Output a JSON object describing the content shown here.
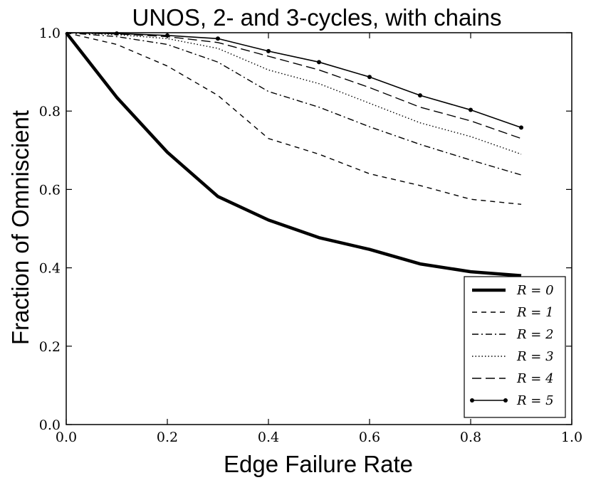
{
  "chart_data": {
    "type": "line",
    "title": "UNOS, 2- and 3-cycles, with chains",
    "xlabel": "Edge Failure Rate",
    "ylabel": "Fraction of Omniscient",
    "xlim": [
      0.0,
      1.0
    ],
    "ylim": [
      0.0,
      1.0
    ],
    "xticks": [
      "0.0",
      "0.2",
      "0.4",
      "0.6",
      "0.8",
      "1.0"
    ],
    "yticks": [
      "0.0",
      "0.2",
      "0.4",
      "0.6",
      "0.8",
      "1.0"
    ],
    "grid": false,
    "legend_position": "lower-right",
    "x": [
      0.0,
      0.1,
      0.2,
      0.3,
      0.4,
      0.5,
      0.6,
      0.7,
      0.8,
      0.9
    ],
    "series": [
      {
        "name": "R = 0",
        "style": "thick-solid",
        "values": [
          1.0,
          0.835,
          0.695,
          0.582,
          0.522,
          0.477,
          0.447,
          0.41,
          0.39,
          0.38
        ]
      },
      {
        "name": "R = 1",
        "style": "dashed",
        "values": [
          1.0,
          0.97,
          0.915,
          0.84,
          0.73,
          0.69,
          0.64,
          0.61,
          0.575,
          0.562
        ]
      },
      {
        "name": "R = 2",
        "style": "dash-dot",
        "values": [
          1.0,
          0.99,
          0.97,
          0.925,
          0.85,
          0.81,
          0.76,
          0.715,
          0.675,
          0.637
        ]
      },
      {
        "name": "R = 3",
        "style": "dotted",
        "values": [
          1.0,
          0.995,
          0.985,
          0.96,
          0.905,
          0.87,
          0.82,
          0.77,
          0.735,
          0.69
        ]
      },
      {
        "name": "R = 4",
        "style": "long-dash",
        "values": [
          1.0,
          0.997,
          0.99,
          0.975,
          0.94,
          0.905,
          0.86,
          0.81,
          0.775,
          0.73
        ]
      },
      {
        "name": "R = 5",
        "style": "solid-dot",
        "values": [
          1.0,
          0.998,
          0.993,
          0.985,
          0.953,
          0.925,
          0.887,
          0.84,
          0.803,
          0.758
        ]
      }
    ],
    "colors": {
      "line": "#000000",
      "background": "#ffffff"
    }
  }
}
